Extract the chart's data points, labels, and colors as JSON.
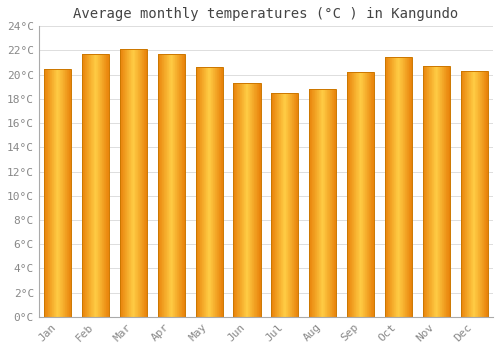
{
  "months": [
    "Jan",
    "Feb",
    "Mar",
    "Apr",
    "May",
    "Jun",
    "Jul",
    "Aug",
    "Sep",
    "Oct",
    "Nov",
    "Dec"
  ],
  "temperatures": [
    20.5,
    21.7,
    22.1,
    21.7,
    20.6,
    19.3,
    18.5,
    18.8,
    20.2,
    21.5,
    20.7,
    20.3
  ],
  "bar_color_left": "#E8820A",
  "bar_color_center": "#FFCC44",
  "bar_color_right": "#E8820A",
  "bar_edge_color": "#CC7700",
  "title": "Average monthly temperatures (°C ) in Kangundo",
  "ylim": [
    0,
    24
  ],
  "ytick_interval": 2,
  "background_color": "#FFFFFF",
  "grid_color": "#DDDDDD",
  "title_fontsize": 10,
  "tick_fontsize": 8,
  "tick_color": "#888888",
  "title_color": "#444444",
  "bar_width": 0.72
}
